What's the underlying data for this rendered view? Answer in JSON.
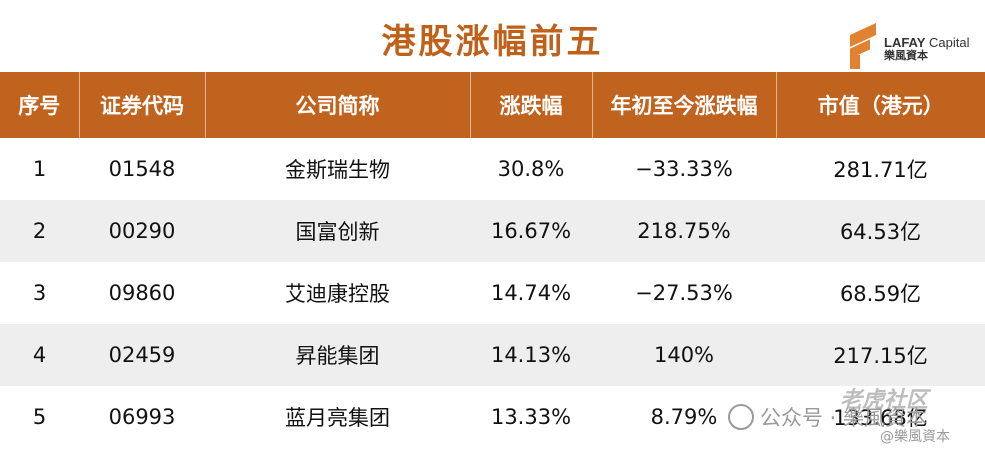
{
  "title": "港股涨幅前五",
  "logo": {
    "brand": "LAFAY",
    "suffix": "Capital",
    "cn": "樂風資本"
  },
  "table": {
    "headers": [
      "序号",
      "证券代码",
      "公司简称",
      "涨跌幅",
      "年初至今涨跌幅",
      "市值（港元）"
    ],
    "rows": [
      [
        "1",
        "01548",
        "金斯瑞生物",
        "30.8%",
        "−33.33%",
        "281.71亿"
      ],
      [
        "2",
        "00290",
        "国富创新",
        "16.67%",
        "218.75%",
        "64.53亿"
      ],
      [
        "3",
        "09860",
        "艾迪康控股",
        "14.74%",
        "−27.53%",
        "68.59亿"
      ],
      [
        "4",
        "02459",
        "昇能集团",
        "14.13%",
        "140%",
        "217.15亿"
      ],
      [
        "5",
        "06993",
        "蓝月亮集团",
        "13.33%",
        "8.79%",
        "133.68亿"
      ]
    ]
  },
  "watermarks": {
    "community": "老虎社区",
    "account": "公众号 · 樂風資本",
    "handle": "@樂風資本"
  },
  "colors": {
    "header_bg": "#c0631f",
    "title": "#c0611a",
    "stripe": "#eeeeee"
  }
}
